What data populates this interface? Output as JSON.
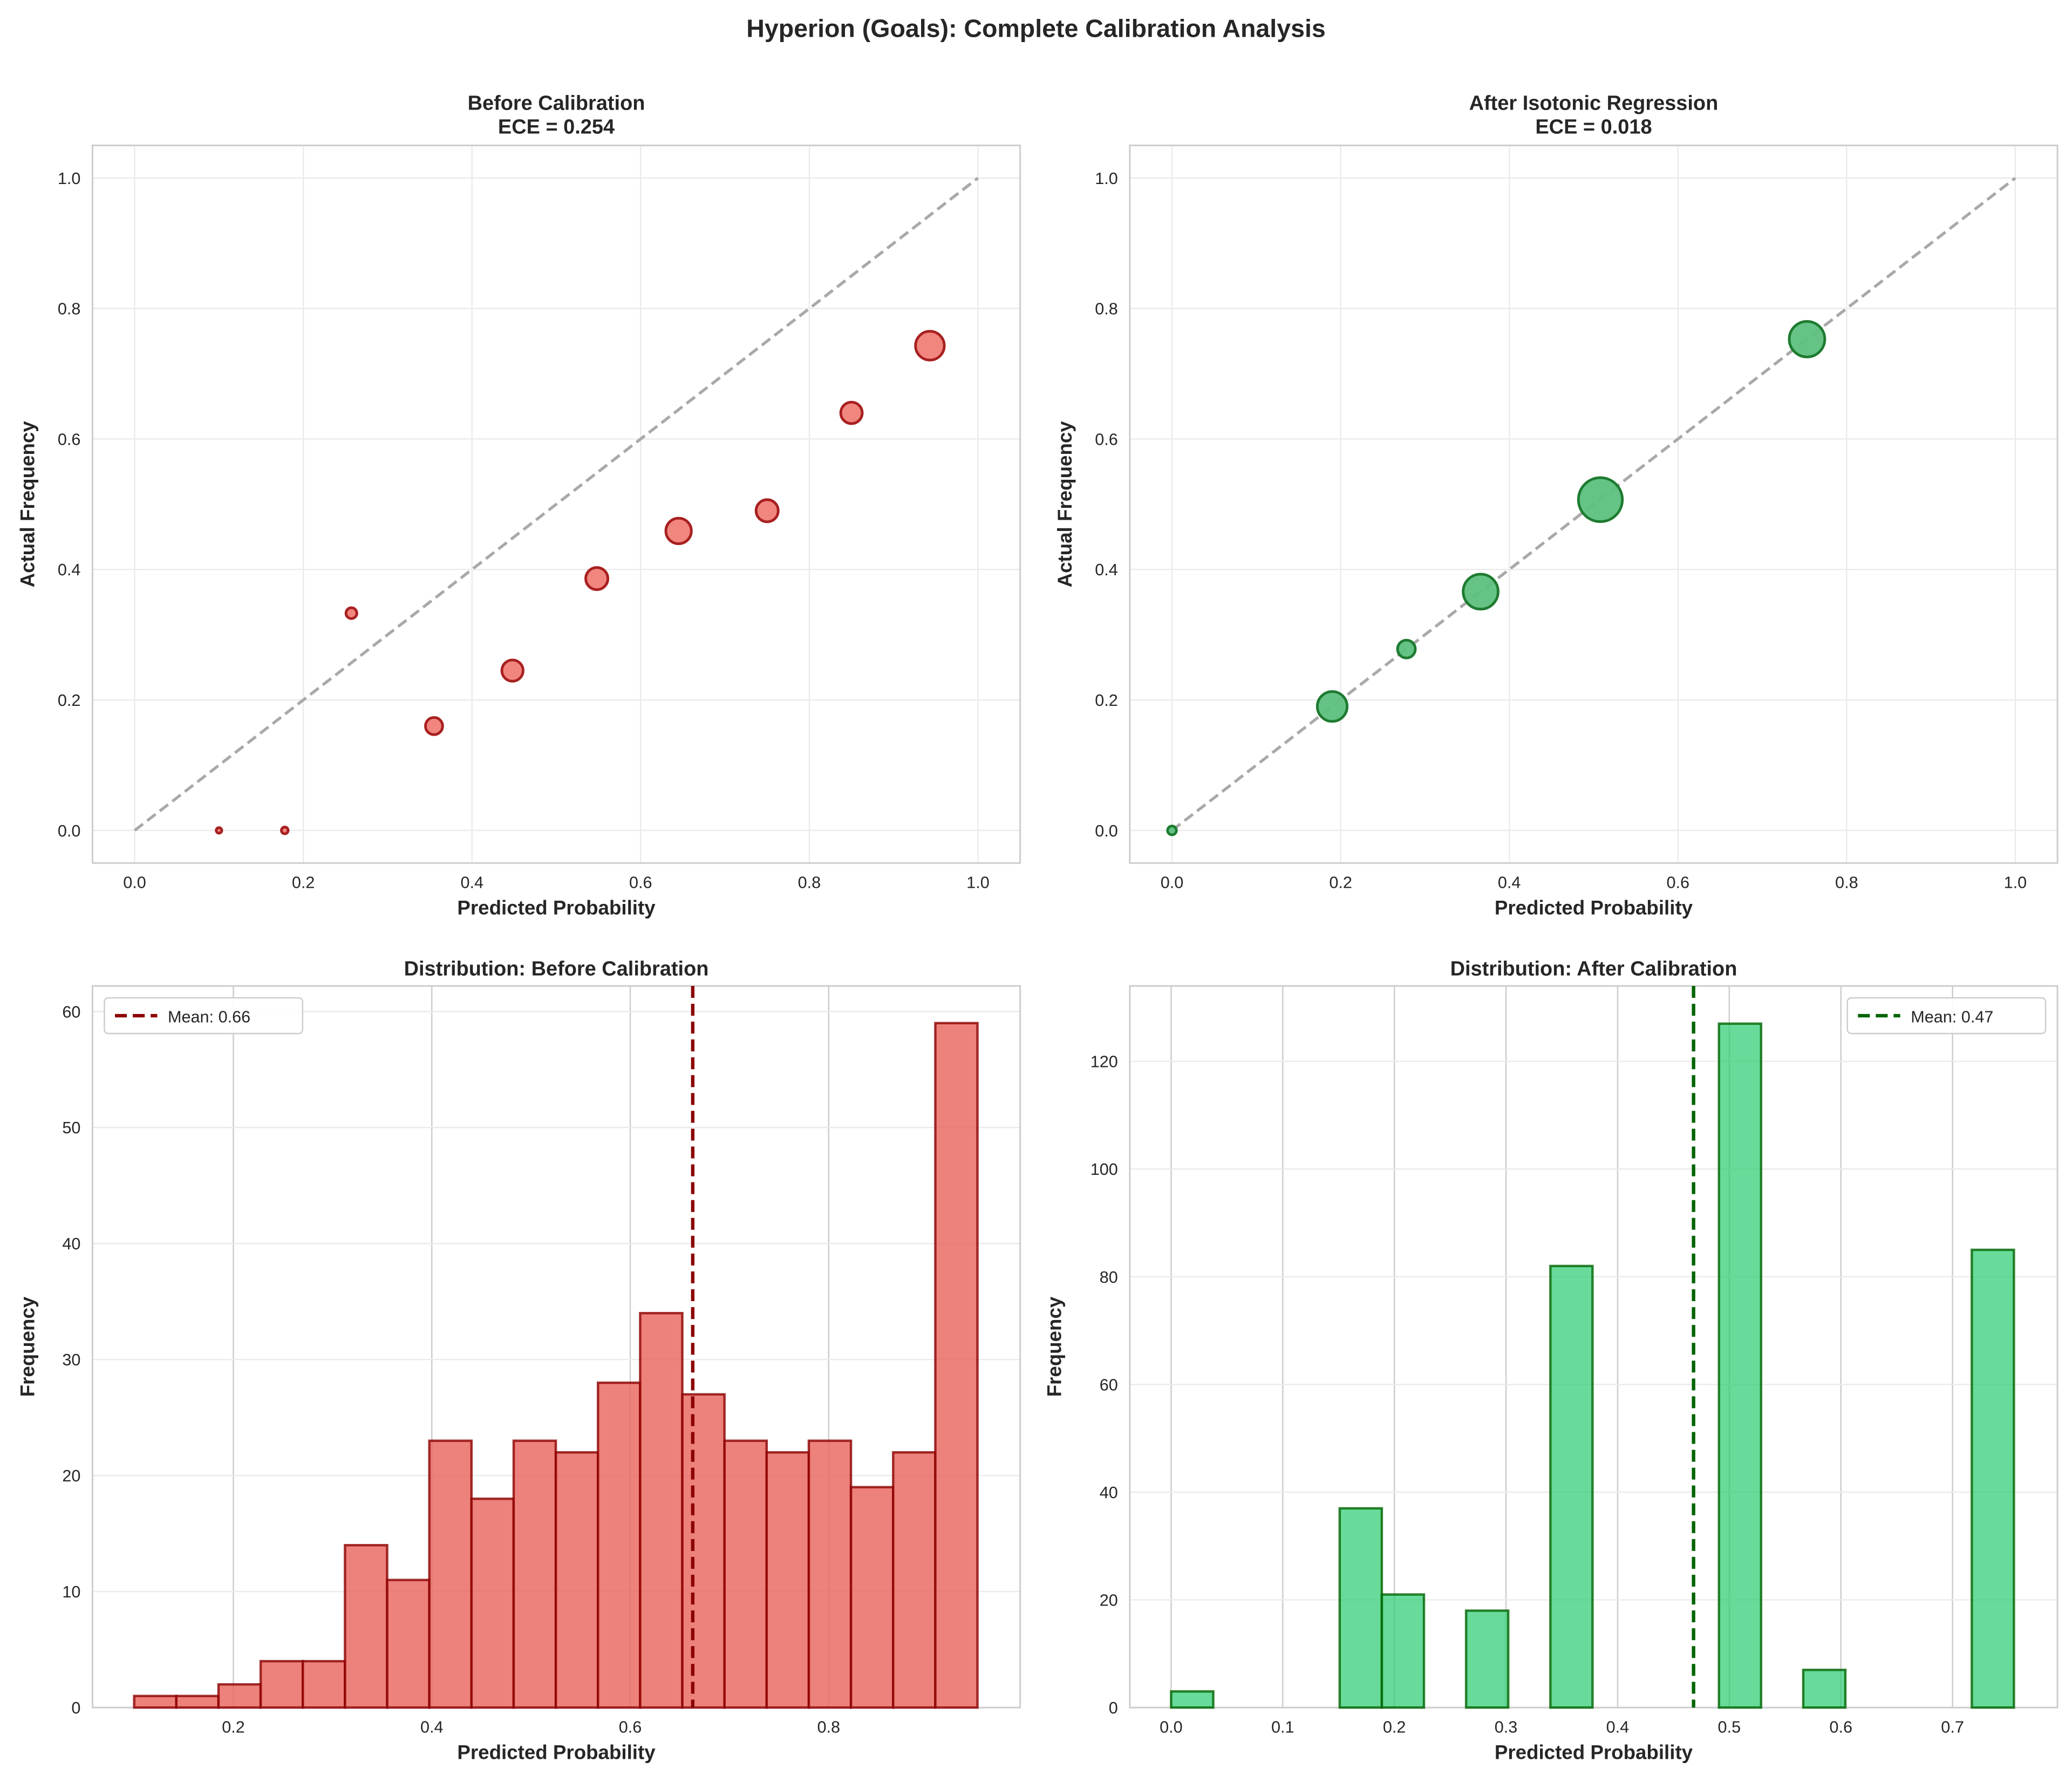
{
  "figure_title": "Hyperion (Goals): Complete Calibration Analysis",
  "colors": {
    "before_fill": "#e8625a",
    "before_edge": "#8b0000",
    "after_fill": "#2ecc71",
    "after_edge": "#006400",
    "diagonal": "#a9a9a9",
    "grid": "#ebebeb"
  },
  "chart_data": [
    {
      "type": "scatter",
      "title": "Before Calibration",
      "subtitle": "ECE = 0.254",
      "xlabel": "Predicted Probability",
      "ylabel": "Actual Frequency",
      "xlim": [
        -0.05,
        1.05
      ],
      "ylim": [
        -0.05,
        1.05
      ],
      "xticks": [
        "0.0",
        "0.2",
        "0.4",
        "0.6",
        "0.8",
        "1.0"
      ],
      "yticks": [
        "0.0",
        "0.2",
        "0.4",
        "0.6",
        "0.8",
        "1.0"
      ],
      "grid": true,
      "reference_line": "perfect calibration diagonal (dashed)",
      "x": [
        0.1,
        0.178,
        0.257,
        0.355,
        0.448,
        0.548,
        0.645,
        0.75,
        0.85,
        0.943
      ],
      "y": [
        0.0,
        0.0,
        0.333,
        0.16,
        0.245,
        0.386,
        0.459,
        0.49,
        0.64,
        0.743
      ],
      "marker_weight": [
        1,
        2,
        8,
        25,
        41,
        45,
        62,
        45,
        42,
        81
      ]
    },
    {
      "type": "scatter",
      "title": "After Isotonic Regression",
      "subtitle": "ECE = 0.018",
      "xlabel": "Predicted Probability",
      "ylabel": "Actual Frequency",
      "xlim": [
        -0.05,
        1.05
      ],
      "ylim": [
        -0.05,
        1.05
      ],
      "xticks": [
        "0.0",
        "0.2",
        "0.4",
        "0.6",
        "0.8",
        "1.0"
      ],
      "yticks": [
        "0.0",
        "0.2",
        "0.4",
        "0.6",
        "0.8",
        "1.0"
      ],
      "grid": true,
      "reference_line": "perfect calibration diagonal (dashed)",
      "x": [
        0.0,
        0.19,
        0.278,
        0.366,
        0.508,
        0.753
      ],
      "y": [
        0.0,
        0.19,
        0.278,
        0.366,
        0.507,
        0.753
      ],
      "marker_weight": [
        3,
        58,
        18,
        82,
        134,
        85
      ]
    },
    {
      "type": "bar",
      "title": "Distribution: Before Calibration",
      "xlabel": "Predicted Probability",
      "ylabel": "Frequency",
      "xlim": [
        0.058,
        0.993
      ],
      "ylim": [
        0,
        62.2
      ],
      "xticks": [
        "0.2",
        "0.4",
        "0.6",
        "0.8"
      ],
      "yticks": [
        "0",
        "10",
        "20",
        "30",
        "40",
        "50",
        "60"
      ],
      "grid": true,
      "bin_start": 0.1,
      "bin_width": 0.0425,
      "values": [
        1,
        1,
        2,
        4,
        4,
        14,
        11,
        23,
        18,
        23,
        22,
        28,
        34,
        27,
        23,
        22,
        23,
        19,
        22,
        59
      ],
      "mean": 0.663,
      "legend": "Mean: 0.66",
      "legend_position": "upper-left"
    },
    {
      "type": "bar",
      "title": "Distribution: After Calibration",
      "xlabel": "Predicted Probability",
      "ylabel": "Frequency",
      "xlim": [
        -0.037,
        0.794
      ],
      "ylim": [
        0,
        134
      ],
      "xticks": [
        "0.0",
        "0.1",
        "0.2",
        "0.3",
        "0.4",
        "0.5",
        "0.6",
        "0.7"
      ],
      "yticks": [
        "0",
        "20",
        "40",
        "60",
        "80",
        "100",
        "120"
      ],
      "grid": true,
      "bin_start": 0.0,
      "bin_width": 0.03775,
      "values": [
        3,
        0,
        0,
        0,
        37,
        21,
        0,
        18,
        0,
        82,
        0,
        0,
        0,
        127,
        0,
        7,
        0,
        0,
        0,
        85
      ],
      "mean": 0.468,
      "legend": "Mean: 0.47",
      "legend_position": "upper-right"
    }
  ]
}
